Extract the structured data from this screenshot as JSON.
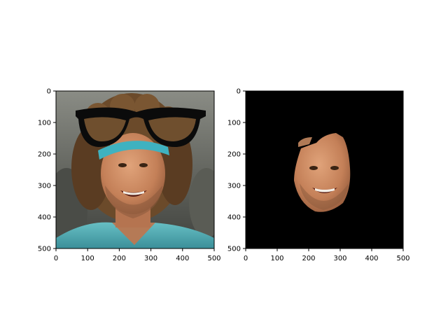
{
  "figure": {
    "background": "#ffffff"
  },
  "chart_data": [
    {
      "type": "image",
      "title": "",
      "xlabel": "",
      "ylabel": "",
      "xlim": [
        0,
        500
      ],
      "ylim": [
        500,
        0
      ],
      "xticks": [
        0,
        100,
        200,
        300,
        400,
        500
      ],
      "yticks": [
        0,
        100,
        200,
        300,
        400,
        500
      ],
      "grid": false,
      "image_content": "photo of smiling man with curly hair, teal headband and teal shirt, with drawn black glasses overlay",
      "overlay": "black-glasses",
      "colors": {
        "skin": "#c98a63",
        "hair": "#6b4a2a",
        "shirt": "#4fa9b0",
        "glasses": "#0b0b0b",
        "background": "#6e6e66"
      }
    },
    {
      "type": "image",
      "title": "",
      "xlabel": "",
      "ylabel": "",
      "xlim": [
        0,
        500
      ],
      "ylim": [
        500,
        0
      ],
      "xticks": [
        0,
        100,
        200,
        300,
        400,
        500
      ],
      "yticks": [
        0,
        100,
        200,
        300,
        400,
        500
      ],
      "grid": false,
      "image_content": "segmented face only on black background",
      "colors": {
        "skin": "#c98a63",
        "background": "#000000"
      }
    }
  ]
}
